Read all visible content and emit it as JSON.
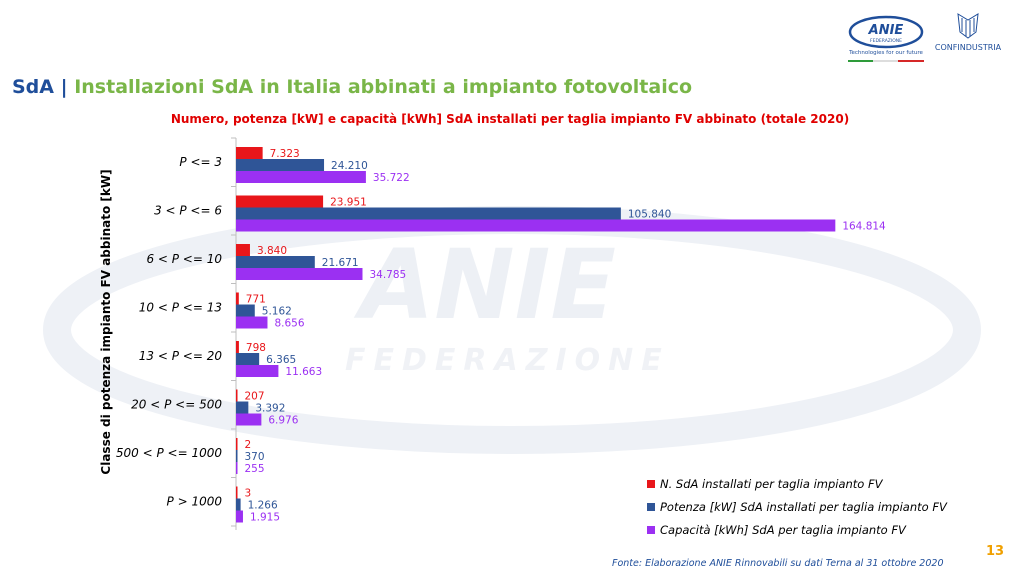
{
  "header": {
    "prefix": "SdA",
    "separator": "|",
    "title": "Installazioni SdA in Italia abbinati a impianto fotovoltaico"
  },
  "logos": {
    "anie_name": "ANIE",
    "anie_sub": "FEDERAZIONE",
    "anie_tagline": "Technologies for our future",
    "confindustria": "CONFINDUSTRIA"
  },
  "watermark_text": {
    "main": "ANIE",
    "sub": "FEDERAZIONE"
  },
  "colors": {
    "series_1": "#e8161a",
    "series_2": "#2f5597",
    "series_3": "#9b30f2",
    "title_red": "#e00000",
    "header_blue": "#1f4e9a",
    "header_green": "#7ab648",
    "page_number": "#f0a000"
  },
  "chart_data": {
    "type": "bar",
    "orientation": "horizontal",
    "title": "Numero, potenza [kW] e capacità [kWh] SdA installati per taglia impianto FV abbinato (totale 2020)",
    "ylabel": "Classe di potenza impianto FV abbinato [kW]",
    "xlabel": "",
    "categories": [
      "P <= 3",
      "3 < P <= 6",
      "6 < P <= 10",
      "10 < P <= 13",
      "13 < P <= 20",
      "20 < P <= 500",
      "500 < P <= 1000",
      "P > 1000"
    ],
    "series": [
      {
        "name": "N. SdA installati per taglia impianto FV",
        "values": [
          7323,
          23951,
          3840,
          771,
          798,
          207,
          2,
          3
        ],
        "labels": [
          "7.323",
          "23.951",
          "3.840",
          "771",
          "798",
          "207",
          "2",
          "3"
        ]
      },
      {
        "name": "Potenza [kW] SdA installati per taglia impianto FV",
        "values": [
          24210,
          105840,
          21671,
          5162,
          6365,
          3392,
          370,
          1266
        ],
        "labels": [
          "24.210",
          "105.840",
          "21.671",
          "5.162",
          "6.365",
          "3.392",
          "370",
          "1.266"
        ]
      },
      {
        "name": "Capacità [kWh] SdA per taglia impianto FV",
        "values": [
          35722,
          164814,
          34785,
          8656,
          11663,
          6976,
          255,
          1915
        ],
        "labels": [
          "35.722",
          "164.814",
          "34.785",
          "8.656",
          "11.663",
          "6.976",
          "255",
          "1.915"
        ]
      }
    ],
    "xlim": [
      0,
      165000
    ],
    "grid": false,
    "legend_position": "bottom-right"
  },
  "footer": {
    "source": "Fonte: Elaborazione ANIE Rinnovabili su dati Terna al 31 ottobre 2020",
    "page_number": "13"
  }
}
